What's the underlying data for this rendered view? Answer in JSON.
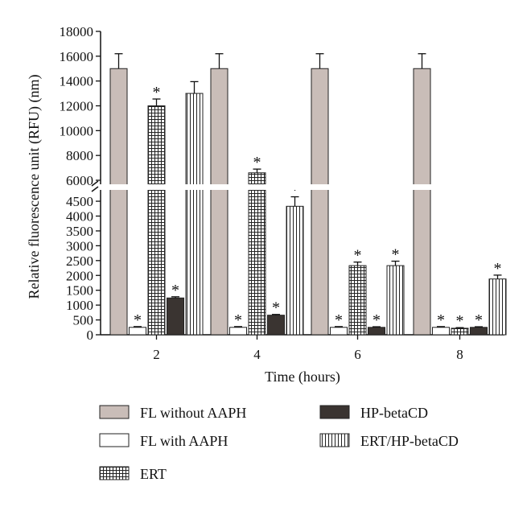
{
  "chart_data": {
    "type": "bar",
    "xlabel": "Time (hours)",
    "ylabel": "Relative fluorescence unit (RFU) (nm)",
    "categories": [
      "2",
      "4",
      "6",
      "8"
    ],
    "y_axis": {
      "broken": true,
      "lower_range": [
        0,
        4800
      ],
      "upper_range": [
        6000,
        18000
      ],
      "lower_ticks": [
        "0",
        "500",
        "1000",
        "1500",
        "2000",
        "2500",
        "3000",
        "3500",
        "4000",
        "4500"
      ],
      "upper_ticks": [
        "6000",
        "8000",
        "10000",
        "12000",
        "14000",
        "16000",
        "18000"
      ]
    },
    "series": [
      {
        "name": "FL without AAPH",
        "values": [
          15000,
          15000,
          15000,
          15000
        ],
        "errors": [
          1200,
          1200,
          1200,
          1200
        ],
        "significant": [
          false,
          false,
          false,
          false
        ],
        "color": "#c9bdb8",
        "pattern": "solid"
      },
      {
        "name": "FL with AAPH",
        "values": [
          250,
          250,
          250,
          250
        ],
        "errors": [
          25,
          25,
          25,
          25
        ],
        "significant": [
          true,
          true,
          true,
          true
        ],
        "color": "#ffffff",
        "pattern": "none"
      },
      {
        "name": "ERT",
        "values": [
          12000,
          6600,
          2330,
          220
        ],
        "errors": [
          550,
          300,
          120,
          20
        ],
        "significant": [
          true,
          true,
          true,
          true
        ],
        "color": "#ffffff",
        "pattern": "grid"
      },
      {
        "name": "HP-betaCD",
        "values": [
          1240,
          660,
          250,
          250
        ],
        "errors": [
          40,
          25,
          20,
          20
        ],
        "significant": [
          true,
          true,
          true,
          true
        ],
        "color": "#3a3431",
        "pattern": "solid"
      },
      {
        "name": "ERT/HP-betaCD",
        "values": [
          13000,
          4330,
          2330,
          1880
        ],
        "errors": [
          950,
          320,
          150,
          130
        ],
        "significant": [
          false,
          true,
          true,
          true
        ],
        "color": "#ffffff",
        "pattern": "vertical-lines"
      }
    ],
    "legend": {
      "placement": "bottom",
      "columns": 2
    },
    "significance_marker": "*",
    "grid": false
  }
}
